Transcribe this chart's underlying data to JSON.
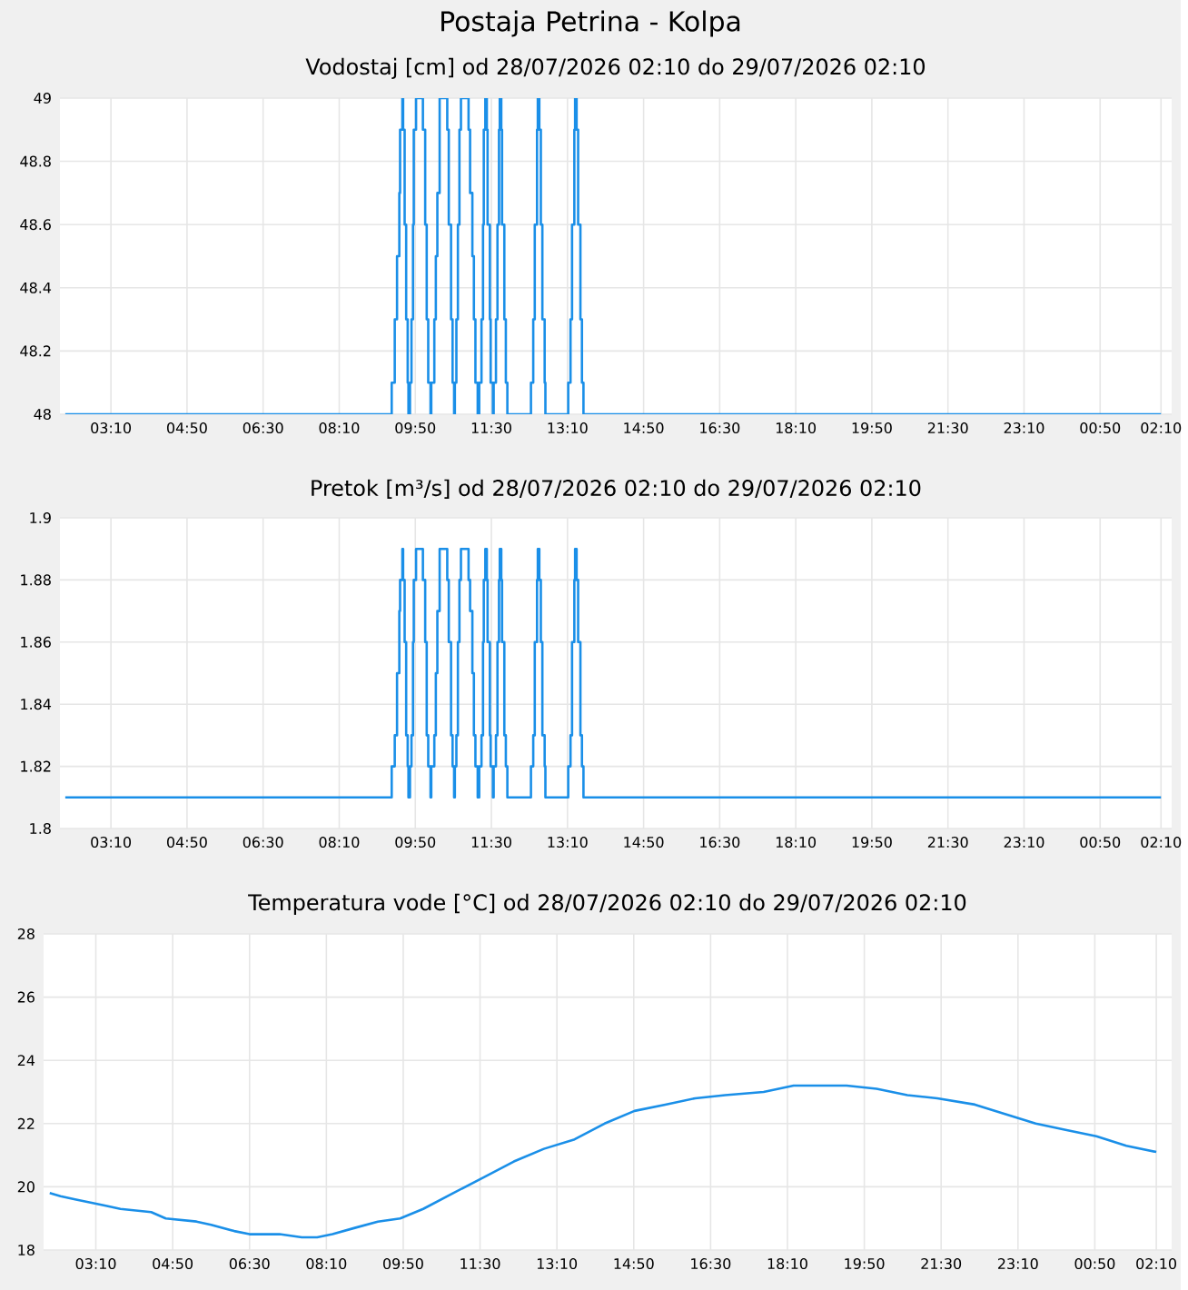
{
  "chart_data": [
    {
      "type": "step",
      "title": "Postaja Petrina - Kolpa",
      "subtitle": "Vodostaj [cm] od 28/07/2026 02:10 do 29/07/2026 02:10",
      "color": "#1a8fe8",
      "grid": true,
      "xlim": [
        "2026-07-28T02:03",
        "2026-07-29T02:24"
      ],
      "ylim": [
        48,
        49
      ],
      "yticks": [
        48,
        48.2,
        48.4,
        48.6,
        48.8,
        49
      ],
      "xticks": [
        {
          "value": "2026-07-28T03:10",
          "label": "03:10"
        },
        {
          "value": "2026-07-28T04:50",
          "label": "04:50"
        },
        {
          "value": "2026-07-28T06:30",
          "label": "06:30"
        },
        {
          "value": "2026-07-28T08:10",
          "label": "08:10"
        },
        {
          "value": "2026-07-28T09:50",
          "label": "09:50"
        },
        {
          "value": "2026-07-28T11:30",
          "label": "11:30"
        },
        {
          "value": "2026-07-28T13:10",
          "label": "13:10"
        },
        {
          "value": "2026-07-28T14:50",
          "label": "14:50"
        },
        {
          "value": "2026-07-28T16:30",
          "label": "16:30"
        },
        {
          "value": "2026-07-28T18:10",
          "label": "18:10"
        },
        {
          "value": "2026-07-28T19:50",
          "label": "19:50"
        },
        {
          "value": "2026-07-28T21:30",
          "label": "21:30"
        },
        {
          "value": "2026-07-28T23:10",
          "label": "23:10"
        },
        {
          "value": "2026-07-29T00:50",
          "label": "00:50"
        },
        {
          "value": "2026-07-29T02:10",
          "label": "02:10"
        }
      ],
      "x": [
        "2026-07-28T02:10",
        "2026-07-28T09:19",
        "2026-07-28T09:23",
        "2026-07-28T09:26",
        "2026-07-28T09:29",
        "2026-07-28T09:30",
        "2026-07-28T09:33",
        "2026-07-28T09:34",
        "2026-07-28T09:36",
        "2026-07-28T09:38",
        "2026-07-28T09:40",
        "2026-07-28T09:41",
        "2026-07-28T09:43",
        "2026-07-28T09:45",
        "2026-07-28T09:47",
        "2026-07-28T09:48",
        "2026-07-28T09:51",
        "2026-07-28T10:00",
        "2026-07-28T10:03",
        "2026-07-28T10:05",
        "2026-07-28T10:07",
        "2026-07-28T10:10",
        "2026-07-28T10:11",
        "2026-07-28T10:15",
        "2026-07-28T10:17",
        "2026-07-28T10:19",
        "2026-07-28T10:22",
        "2026-07-28T10:32",
        "2026-07-28T10:34",
        "2026-07-28T10:37",
        "2026-07-28T10:39",
        "2026-07-28T10:41",
        "2026-07-28T10:42",
        "2026-07-28T10:44",
        "2026-07-28T10:46",
        "2026-07-28T10:48",
        "2026-07-28T10:50",
        "2026-07-28T11:00",
        "2026-07-28T11:02",
        "2026-07-28T11:05",
        "2026-07-28T11:07",
        "2026-07-28T11:09",
        "2026-07-28T11:12",
        "2026-07-28T11:14",
        "2026-07-28T11:17",
        "2026-07-28T11:19",
        "2026-07-28T11:20",
        "2026-07-28T11:22",
        "2026-07-28T11:24",
        "2026-07-28T11:25",
        "2026-07-28T11:28",
        "2026-07-28T11:29",
        "2026-07-28T11:32",
        "2026-07-28T11:33",
        "2026-07-28T11:36",
        "2026-07-28T11:38",
        "2026-07-28T11:40",
        "2026-07-28T11:41",
        "2026-07-28T11:43",
        "2026-07-28T11:44",
        "2026-07-28T11:47",
        "2026-07-28T11:49",
        "2026-07-28T11:51",
        "2026-07-28T12:22",
        "2026-07-28T12:25",
        "2026-07-28T12:27",
        "2026-07-28T12:30",
        "2026-07-28T12:31",
        "2026-07-28T12:33",
        "2026-07-28T12:35",
        "2026-07-28T12:37",
        "2026-07-28T12:40",
        "2026-07-28T12:41",
        "2026-07-28T13:11",
        "2026-07-28T13:14",
        "2026-07-28T13:16",
        "2026-07-28T13:19",
        "2026-07-28T13:20",
        "2026-07-28T13:22",
        "2026-07-28T13:24",
        "2026-07-28T13:27",
        "2026-07-28T13:29",
        "2026-07-28T13:31",
        "2026-07-29T02:10"
      ],
      "values": [
        48,
        48.1,
        48.3,
        48.5,
        48.7,
        48.9,
        49,
        48.9,
        48.6,
        48.3,
        48.1,
        48,
        48.1,
        48.3,
        48.6,
        48.9,
        49,
        48.9,
        48.6,
        48.3,
        48.1,
        48,
        48.1,
        48.3,
        48.5,
        48.7,
        49,
        48.9,
        48.6,
        48.3,
        48.1,
        48,
        48.1,
        48.3,
        48.6,
        48.9,
        49,
        48.9,
        48.7,
        48.5,
        48.3,
        48.1,
        48,
        48.1,
        48.3,
        48.6,
        48.9,
        49,
        48.9,
        48.6,
        48.3,
        48.1,
        48,
        48.1,
        48.3,
        48.6,
        48.9,
        49,
        48.9,
        48.6,
        48.3,
        48.1,
        48,
        48.1,
        48.3,
        48.6,
        48.9,
        49,
        48.9,
        48.6,
        48.3,
        48.1,
        48,
        48.1,
        48.3,
        48.6,
        48.9,
        49,
        48.9,
        48.6,
        48.3,
        48.1,
        48,
        48
      ]
    },
    {
      "type": "step",
      "subtitle": "Pretok [m³/s] od 28/07/2026 02:10 do 29/07/2026 02:10",
      "color": "#1a8fe8",
      "grid": true,
      "xlim": [
        "2026-07-28T02:03",
        "2026-07-29T02:24"
      ],
      "ylim": [
        1.8,
        1.9
      ],
      "yticks": [
        1.8,
        1.82,
        1.84,
        1.86,
        1.88,
        1.9
      ],
      "xticks": [
        {
          "value": "2026-07-28T03:10",
          "label": "03:10"
        },
        {
          "value": "2026-07-28T04:50",
          "label": "04:50"
        },
        {
          "value": "2026-07-28T06:30",
          "label": "06:30"
        },
        {
          "value": "2026-07-28T08:10",
          "label": "08:10"
        },
        {
          "value": "2026-07-28T09:50",
          "label": "09:50"
        },
        {
          "value": "2026-07-28T11:30",
          "label": "11:30"
        },
        {
          "value": "2026-07-28T13:10",
          "label": "13:10"
        },
        {
          "value": "2026-07-28T14:50",
          "label": "14:50"
        },
        {
          "value": "2026-07-28T16:30",
          "label": "16:30"
        },
        {
          "value": "2026-07-28T18:10",
          "label": "18:10"
        },
        {
          "value": "2026-07-28T19:50",
          "label": "19:50"
        },
        {
          "value": "2026-07-28T21:30",
          "label": "21:30"
        },
        {
          "value": "2026-07-28T23:10",
          "label": "23:10"
        },
        {
          "value": "2026-07-29T00:50",
          "label": "00:50"
        },
        {
          "value": "2026-07-29T02:10",
          "label": "02:10"
        }
      ],
      "x": [
        "2026-07-28T02:10",
        "2026-07-28T09:19",
        "2026-07-28T09:23",
        "2026-07-28T09:26",
        "2026-07-28T09:29",
        "2026-07-28T09:30",
        "2026-07-28T09:33",
        "2026-07-28T09:34",
        "2026-07-28T09:36",
        "2026-07-28T09:38",
        "2026-07-28T09:40",
        "2026-07-28T09:41",
        "2026-07-28T09:43",
        "2026-07-28T09:45",
        "2026-07-28T09:47",
        "2026-07-28T09:48",
        "2026-07-28T09:51",
        "2026-07-28T10:00",
        "2026-07-28T10:03",
        "2026-07-28T10:05",
        "2026-07-28T10:07",
        "2026-07-28T10:10",
        "2026-07-28T10:11",
        "2026-07-28T10:15",
        "2026-07-28T10:17",
        "2026-07-28T10:19",
        "2026-07-28T10:22",
        "2026-07-28T10:32",
        "2026-07-28T10:34",
        "2026-07-28T10:37",
        "2026-07-28T10:39",
        "2026-07-28T10:41",
        "2026-07-28T10:42",
        "2026-07-28T10:44",
        "2026-07-28T10:46",
        "2026-07-28T10:48",
        "2026-07-28T10:50",
        "2026-07-28T11:00",
        "2026-07-28T11:02",
        "2026-07-28T11:05",
        "2026-07-28T11:07",
        "2026-07-28T11:09",
        "2026-07-28T11:12",
        "2026-07-28T11:14",
        "2026-07-28T11:17",
        "2026-07-28T11:19",
        "2026-07-28T11:20",
        "2026-07-28T11:22",
        "2026-07-28T11:24",
        "2026-07-28T11:25",
        "2026-07-28T11:28",
        "2026-07-28T11:29",
        "2026-07-28T11:32",
        "2026-07-28T11:33",
        "2026-07-28T11:36",
        "2026-07-28T11:38",
        "2026-07-28T11:40",
        "2026-07-28T11:41",
        "2026-07-28T11:43",
        "2026-07-28T11:44",
        "2026-07-28T11:47",
        "2026-07-28T11:49",
        "2026-07-28T11:51",
        "2026-07-28T12:22",
        "2026-07-28T12:25",
        "2026-07-28T12:27",
        "2026-07-28T12:30",
        "2026-07-28T12:31",
        "2026-07-28T12:33",
        "2026-07-28T12:35",
        "2026-07-28T12:37",
        "2026-07-28T12:40",
        "2026-07-28T12:41",
        "2026-07-28T13:11",
        "2026-07-28T13:14",
        "2026-07-28T13:16",
        "2026-07-28T13:19",
        "2026-07-28T13:20",
        "2026-07-28T13:22",
        "2026-07-28T13:24",
        "2026-07-28T13:27",
        "2026-07-28T13:29",
        "2026-07-28T13:31",
        "2026-07-29T02:10"
      ],
      "values": [
        1.81,
        1.82,
        1.83,
        1.85,
        1.87,
        1.88,
        1.89,
        1.88,
        1.86,
        1.83,
        1.82,
        1.81,
        1.82,
        1.83,
        1.86,
        1.88,
        1.89,
        1.88,
        1.86,
        1.83,
        1.82,
        1.81,
        1.82,
        1.83,
        1.85,
        1.87,
        1.89,
        1.88,
        1.86,
        1.83,
        1.82,
        1.81,
        1.82,
        1.83,
        1.86,
        1.88,
        1.89,
        1.88,
        1.87,
        1.85,
        1.83,
        1.82,
        1.81,
        1.82,
        1.83,
        1.86,
        1.88,
        1.89,
        1.88,
        1.86,
        1.83,
        1.82,
        1.81,
        1.82,
        1.83,
        1.86,
        1.88,
        1.89,
        1.88,
        1.86,
        1.83,
        1.82,
        1.81,
        1.82,
        1.83,
        1.86,
        1.88,
        1.89,
        1.88,
        1.86,
        1.83,
        1.82,
        1.81,
        1.82,
        1.83,
        1.86,
        1.88,
        1.89,
        1.88,
        1.86,
        1.83,
        1.82,
        1.81,
        1.81
      ]
    },
    {
      "type": "line",
      "subtitle": "Temperatura vode [°C] od 28/07/2026 02:10 do 29/07/2026 02:10",
      "color": "#1a8fe8",
      "grid": true,
      "xlim": [
        "2026-07-28T02:02",
        "2026-07-29T02:30"
      ],
      "ylim": [
        18,
        28
      ],
      "yticks": [
        18,
        20,
        22,
        24,
        26,
        28
      ],
      "xticks": [
        {
          "value": "2026-07-28T03:10",
          "label": "03:10"
        },
        {
          "value": "2026-07-28T04:50",
          "label": "04:50"
        },
        {
          "value": "2026-07-28T06:30",
          "label": "06:30"
        },
        {
          "value": "2026-07-28T08:10",
          "label": "08:10"
        },
        {
          "value": "2026-07-28T09:50",
          "label": "09:50"
        },
        {
          "value": "2026-07-28T11:30",
          "label": "11:30"
        },
        {
          "value": "2026-07-28T13:10",
          "label": "13:10"
        },
        {
          "value": "2026-07-28T14:50",
          "label": "14:50"
        },
        {
          "value": "2026-07-28T16:30",
          "label": "16:30"
        },
        {
          "value": "2026-07-28T18:10",
          "label": "18:10"
        },
        {
          "value": "2026-07-28T19:50",
          "label": "19:50"
        },
        {
          "value": "2026-07-28T21:30",
          "label": "21:30"
        },
        {
          "value": "2026-07-28T23:10",
          "label": "23:10"
        },
        {
          "value": "2026-07-29T00:50",
          "label": "00:50"
        },
        {
          "value": "2026-07-29T02:10",
          "label": "02:10"
        }
      ],
      "x": [
        "2026-07-28T02:10",
        "2026-07-28T02:24",
        "2026-07-28T02:43",
        "2026-07-28T03:03",
        "2026-07-28T03:23",
        "2026-07-28T03:42",
        "2026-07-28T04:22",
        "2026-07-28T04:41",
        "2026-07-28T05:21",
        "2026-07-28T05:40",
        "2026-07-28T06:10",
        "2026-07-28T06:30",
        "2026-07-28T07:09",
        "2026-07-28T07:38",
        "2026-07-28T07:58",
        "2026-07-28T08:18",
        "2026-07-28T08:47",
        "2026-07-28T09:17",
        "2026-07-28T09:46",
        "2026-07-28T10:16",
        "2026-07-28T10:55",
        "2026-07-28T11:35",
        "2026-07-28T12:14",
        "2026-07-28T12:53",
        "2026-07-28T13:33",
        "2026-07-28T14:12",
        "2026-07-28T14:51",
        "2026-07-28T15:31",
        "2026-07-28T16:10",
        "2026-07-28T16:49",
        "2026-07-28T17:39",
        "2026-07-28T18:18",
        "2026-07-28T19:27",
        "2026-07-28T20:06",
        "2026-07-28T20:46",
        "2026-07-28T21:25",
        "2026-07-28T22:14",
        "2026-07-28T22:53",
        "2026-07-28T23:33",
        "2026-07-29T00:12",
        "2026-07-29T00:52",
        "2026-07-29T01:31",
        "2026-07-29T02:10"
      ],
      "values": [
        19.8,
        19.7,
        19.6,
        19.5,
        19.4,
        19.3,
        19.2,
        19.0,
        18.9,
        18.8,
        18.6,
        18.5,
        18.5,
        18.4,
        18.4,
        18.5,
        18.7,
        18.9,
        19.0,
        19.3,
        19.8,
        20.3,
        20.8,
        21.2,
        21.5,
        22.0,
        22.4,
        22.6,
        22.8,
        22.9,
        23.0,
        23.2,
        23.2,
        23.1,
        22.9,
        22.8,
        22.6,
        22.3,
        22.0,
        21.8,
        21.6,
        21.3,
        21.1
      ]
    }
  ]
}
